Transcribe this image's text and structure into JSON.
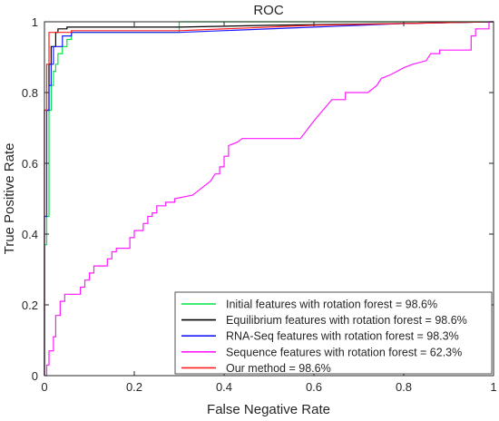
{
  "chart_data": {
    "type": "line",
    "title": "ROC",
    "xlabel": "False Negative Rate",
    "ylabel": "True Positive Rate",
    "xlim": [
      0,
      1
    ],
    "ylim": [
      0,
      1
    ],
    "xticks": [
      0,
      0.2,
      0.4,
      0.6,
      0.8,
      1
    ],
    "yticks": [
      0,
      0.2,
      0.4,
      0.6,
      0.8,
      1
    ],
    "xtick_labels": [
      "0",
      "0.2",
      "0.4",
      "0.6",
      "0.8",
      "1"
    ],
    "ytick_labels": [
      "0",
      "0.2",
      "0.4",
      "0.6",
      "0.8",
      "1"
    ],
    "grid": false,
    "legend_position": "bottom-right",
    "series": [
      {
        "name": "Initial features with rotation forest = 98.6%",
        "color": "#00e640",
        "points": [
          [
            0,
            0
          ],
          [
            0,
            0.37
          ],
          [
            0.005,
            0.37
          ],
          [
            0.005,
            0.45
          ],
          [
            0.01,
            0.45
          ],
          [
            0.01,
            0.75
          ],
          [
            0.015,
            0.75
          ],
          [
            0.015,
            0.82
          ],
          [
            0.02,
            0.82
          ],
          [
            0.02,
            0.86
          ],
          [
            0.025,
            0.86
          ],
          [
            0.025,
            0.88
          ],
          [
            0.03,
            0.88
          ],
          [
            0.03,
            0.91
          ],
          [
            0.04,
            0.91
          ],
          [
            0.04,
            0.93
          ],
          [
            0.05,
            0.93
          ],
          [
            0.05,
            0.95
          ],
          [
            0.06,
            0.95
          ],
          [
            0.06,
            0.97
          ],
          [
            0.3,
            0.97
          ],
          [
            0.3,
            1
          ],
          [
            1,
            1
          ]
        ]
      },
      {
        "name": "Equilibrium features with rotation forest = 98.6%",
        "color": "#000000",
        "points": [
          [
            0,
            0
          ],
          [
            0,
            0.75
          ],
          [
            0.01,
            0.75
          ],
          [
            0.01,
            0.88
          ],
          [
            0.015,
            0.88
          ],
          [
            0.015,
            0.93
          ],
          [
            0.025,
            0.93
          ],
          [
            0.025,
            0.97
          ],
          [
            0.03,
            0.97
          ],
          [
            0.03,
            0.98
          ],
          [
            0.05,
            0.98
          ],
          [
            0.05,
            0.985
          ],
          [
            0.3,
            0.985
          ],
          [
            0.5,
            0.99
          ],
          [
            0.8,
            0.995
          ],
          [
            1,
            1
          ]
        ]
      },
      {
        "name": "RNA-Seq features with rotation forest = 98.3%",
        "color": "#1a1aff",
        "points": [
          [
            0,
            0
          ],
          [
            0,
            0.45
          ],
          [
            0.005,
            0.45
          ],
          [
            0.005,
            0.75
          ],
          [
            0.01,
            0.75
          ],
          [
            0.01,
            0.82
          ],
          [
            0.015,
            0.82
          ],
          [
            0.015,
            0.88
          ],
          [
            0.02,
            0.88
          ],
          [
            0.02,
            0.93
          ],
          [
            0.04,
            0.93
          ],
          [
            0.04,
            0.96
          ],
          [
            0.06,
            0.96
          ],
          [
            0.06,
            0.97
          ],
          [
            0.3,
            0.97
          ],
          [
            0.6,
            0.985
          ],
          [
            0.8,
            0.995
          ],
          [
            1,
            1
          ]
        ]
      },
      {
        "name": "Sequence features with rotation forest = 62.3%",
        "color": "#ff1aff",
        "points": [
          [
            0,
            0
          ],
          [
            0.005,
            0
          ],
          [
            0.005,
            0.03
          ],
          [
            0.01,
            0.03
          ],
          [
            0.01,
            0.07
          ],
          [
            0.02,
            0.07
          ],
          [
            0.02,
            0.11
          ],
          [
            0.025,
            0.11
          ],
          [
            0.025,
            0.17
          ],
          [
            0.035,
            0.17
          ],
          [
            0.035,
            0.21
          ],
          [
            0.045,
            0.21
          ],
          [
            0.045,
            0.23
          ],
          [
            0.08,
            0.23
          ],
          [
            0.08,
            0.25
          ],
          [
            0.09,
            0.25
          ],
          [
            0.09,
            0.27
          ],
          [
            0.1,
            0.27
          ],
          [
            0.1,
            0.29
          ],
          [
            0.11,
            0.29
          ],
          [
            0.11,
            0.31
          ],
          [
            0.14,
            0.31
          ],
          [
            0.14,
            0.33
          ],
          [
            0.15,
            0.33
          ],
          [
            0.15,
            0.35
          ],
          [
            0.16,
            0.35
          ],
          [
            0.16,
            0.36
          ],
          [
            0.19,
            0.36
          ],
          [
            0.19,
            0.39
          ],
          [
            0.2,
            0.39
          ],
          [
            0.2,
            0.41
          ],
          [
            0.22,
            0.41
          ],
          [
            0.22,
            0.43
          ],
          [
            0.23,
            0.43
          ],
          [
            0.23,
            0.45
          ],
          [
            0.24,
            0.45
          ],
          [
            0.24,
            0.46
          ],
          [
            0.25,
            0.46
          ],
          [
            0.25,
            0.48
          ],
          [
            0.27,
            0.48
          ],
          [
            0.27,
            0.49
          ],
          [
            0.29,
            0.49
          ],
          [
            0.29,
            0.5
          ],
          [
            0.33,
            0.51
          ],
          [
            0.35,
            0.53
          ],
          [
            0.37,
            0.55
          ],
          [
            0.38,
            0.57
          ],
          [
            0.39,
            0.57
          ],
          [
            0.39,
            0.59
          ],
          [
            0.4,
            0.59
          ],
          [
            0.4,
            0.62
          ],
          [
            0.41,
            0.62
          ],
          [
            0.41,
            0.65
          ],
          [
            0.43,
            0.66
          ],
          [
            0.44,
            0.67
          ],
          [
            0.57,
            0.67
          ],
          [
            0.6,
            0.72
          ],
          [
            0.62,
            0.75
          ],
          [
            0.64,
            0.78
          ],
          [
            0.67,
            0.78
          ],
          [
            0.67,
            0.8
          ],
          [
            0.72,
            0.8
          ],
          [
            0.74,
            0.82
          ],
          [
            0.75,
            0.84
          ],
          [
            0.77,
            0.85
          ],
          [
            0.8,
            0.87
          ],
          [
            0.82,
            0.88
          ],
          [
            0.85,
            0.89
          ],
          [
            0.86,
            0.91
          ],
          [
            0.88,
            0.91
          ],
          [
            0.88,
            0.92
          ],
          [
            0.92,
            0.92
          ],
          [
            0.95,
            0.92
          ],
          [
            0.95,
            0.96
          ],
          [
            0.96,
            0.96
          ],
          [
            0.96,
            0.98
          ],
          [
            0.98,
            0.98
          ],
          [
            0.99,
            0.98
          ],
          [
            0.99,
            1
          ],
          [
            1,
            1
          ]
        ]
      },
      {
        "name": "Our method = 98.6%",
        "color": "#ff2020",
        "points": [
          [
            0,
            0
          ],
          [
            0,
            0.75
          ],
          [
            0.005,
            0.75
          ],
          [
            0.005,
            0.88
          ],
          [
            0.01,
            0.88
          ],
          [
            0.01,
            0.97
          ],
          [
            0.06,
            0.97
          ],
          [
            0.06,
            0.975
          ],
          [
            0.3,
            0.975
          ],
          [
            0.6,
            0.99
          ],
          [
            0.8,
            0.995
          ],
          [
            1,
            1
          ]
        ]
      }
    ]
  }
}
